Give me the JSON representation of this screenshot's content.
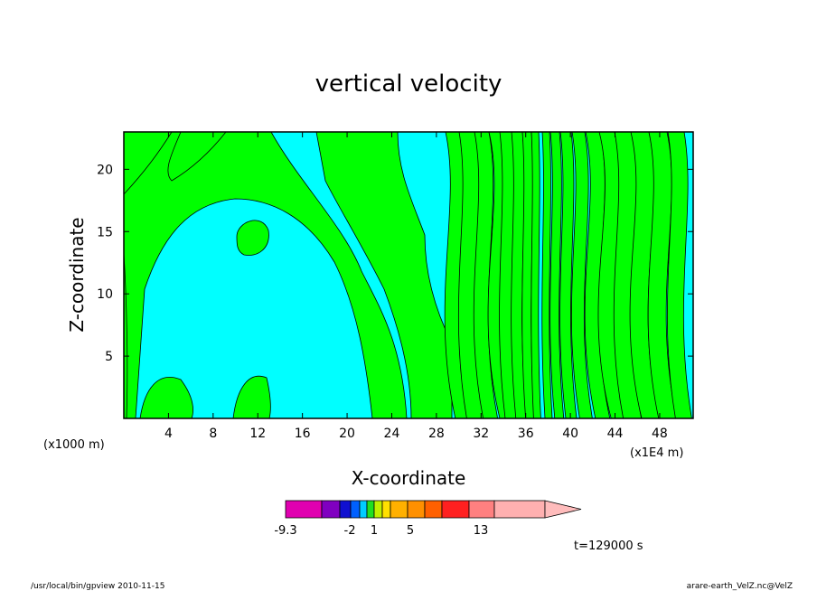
{
  "chart_data": {
    "type": "contour",
    "title": "vertical velocity",
    "xlabel": "X-coordinate",
    "ylabel": "Z-coordinate",
    "x_unit": "(x1E4 m)",
    "y_unit": "(x1000 m)",
    "xlim": [
      0,
      51
    ],
    "ylim": [
      0,
      23
    ],
    "x_ticks": [
      4,
      8,
      12,
      16,
      20,
      24,
      28,
      32,
      36,
      40,
      44,
      48
    ],
    "y_ticks": [
      5,
      10,
      15,
      20
    ],
    "time_label": "t=129000 s",
    "colorbar": {
      "colors": [
        "#e000b0",
        "#e000b0",
        "#8000c0",
        "#1010d0",
        "#0060ff",
        "#00ccff",
        "#20e020",
        "#c0f000",
        "#ffe000",
        "#ffb000",
        "#ff9000",
        "#ff6000",
        "#ff2020",
        "#ff8080",
        "#ffb0b0",
        "#ffbcbc"
      ],
      "labels": [
        "-9.3",
        "-2",
        "1",
        "5",
        "13"
      ]
    },
    "field_colors": {
      "negative": "#00ffff",
      "positive": "#00ff00"
    }
  },
  "footer": {
    "left": "/usr/local/bin/gpview   2010-11-15",
    "right": "arare-earth_VelZ.nc@VelZ"
  }
}
